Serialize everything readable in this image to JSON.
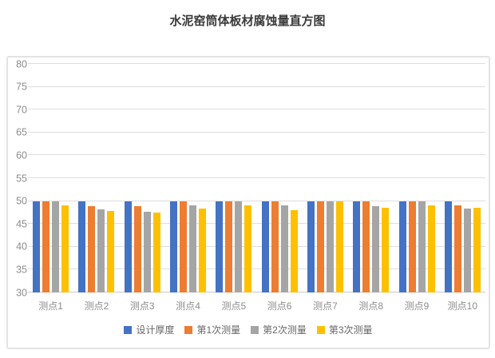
{
  "title": "水泥窑筒体板材腐蚀量直方图",
  "colors": {
    "series_blue": "#4472C4",
    "series_orange": "#ED7D31",
    "series_gray": "#A5A5A5",
    "series_yellow": "#FFC000",
    "gridline": "#dedede",
    "axis_text": "#8c8c8c",
    "title_text": "#3a3a3a"
  },
  "chart_data": {
    "type": "bar",
    "title": "水泥窑筒体板材腐蚀量直方图",
    "categories": [
      "测点1",
      "测点2",
      "测点3",
      "测点4",
      "测点5",
      "测点6",
      "测点7",
      "测点8",
      "测点9",
      "测点10"
    ],
    "series": [
      {
        "name": "设计厚度",
        "color": "#4472C4",
        "values": [
          50,
          50,
          50,
          50,
          50,
          50,
          50,
          50,
          50,
          50
        ]
      },
      {
        "name": "第1次测量",
        "color": "#ED7D31",
        "values": [
          50,
          48.9,
          48.9,
          50,
          50,
          50,
          50,
          50,
          50,
          49
        ]
      },
      {
        "name": "第2次测量",
        "color": "#A5A5A5",
        "values": [
          50,
          48.2,
          47.7,
          49,
          50,
          49,
          50,
          48.8,
          50,
          48.4
        ]
      },
      {
        "name": "第3次测量",
        "color": "#FFC000",
        "values": [
          49,
          47.9,
          47.4,
          48.4,
          49,
          48,
          50,
          48.5,
          49,
          48.6
        ]
      }
    ],
    "xlabel": "",
    "ylabel": "",
    "ylim": [
      30,
      80
    ],
    "ytick_step": 5,
    "yticks": [
      "30",
      "35",
      "40",
      "45",
      "50",
      "55",
      "60",
      "65",
      "70",
      "75",
      "80"
    ],
    "grid": true,
    "legend_position": "bottom"
  }
}
